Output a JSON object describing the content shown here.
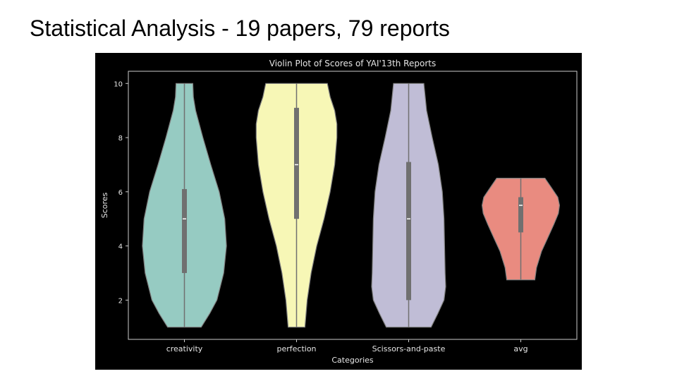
{
  "slide": {
    "title": "Statistical Analysis - 19 papers, 79 reports"
  },
  "chart_data": {
    "type": "violin",
    "title": "Violin Plot of Scores of YAI'13th Reports",
    "xlabel": "Categories",
    "ylabel": "Scores",
    "categories": [
      "creativity",
      "perfection",
      "Scissors-and-paste",
      "avg"
    ],
    "yticks": [
      2,
      4,
      6,
      8,
      10
    ],
    "ylim": [
      0.55,
      10.45
    ],
    "grid": false,
    "legend": "none",
    "background": "#000000",
    "violins": [
      {
        "category": "creativity",
        "color": "#96cbc2",
        "min": 1,
        "q1": 3,
        "median": 5,
        "q3": 6.1,
        "max": 10,
        "profile": [
          [
            1,
            0.3
          ],
          [
            1.5,
            0.45
          ],
          [
            2,
            0.58
          ],
          [
            3,
            0.7
          ],
          [
            4,
            0.75
          ],
          [
            5,
            0.72
          ],
          [
            6,
            0.62
          ],
          [
            7,
            0.47
          ],
          [
            8,
            0.33
          ],
          [
            9,
            0.2
          ],
          [
            9.5,
            0.16
          ],
          [
            10,
            0.15
          ]
        ]
      },
      {
        "category": "perfection",
        "color": "#f7f7b6",
        "min": 1,
        "q1": 5,
        "median": 7,
        "q3": 9.1,
        "max": 10,
        "profile": [
          [
            1,
            0.15
          ],
          [
            2,
            0.19
          ],
          [
            3,
            0.26
          ],
          [
            4,
            0.36
          ],
          [
            5,
            0.49
          ],
          [
            6,
            0.6
          ],
          [
            7,
            0.68
          ],
          [
            8,
            0.72
          ],
          [
            8.5,
            0.72
          ],
          [
            9,
            0.68
          ],
          [
            9.5,
            0.6
          ],
          [
            10,
            0.55
          ]
        ]
      },
      {
        "category": "Scissors-and-paste",
        "color": "#c0bdd6",
        "min": 1,
        "q1": 2,
        "median": 5,
        "q3": 7.1,
        "max": 10,
        "profile": [
          [
            1,
            0.4
          ],
          [
            1.5,
            0.52
          ],
          [
            2,
            0.63
          ],
          [
            2.5,
            0.66
          ],
          [
            3,
            0.65
          ],
          [
            4,
            0.64
          ],
          [
            5,
            0.63
          ],
          [
            6,
            0.6
          ],
          [
            7,
            0.53
          ],
          [
            8,
            0.42
          ],
          [
            9,
            0.32
          ],
          [
            10,
            0.27
          ]
        ]
      },
      {
        "category": "avg",
        "color": "#e98b80",
        "min": 2.75,
        "q1": 4.5,
        "median": 5.5,
        "q3": 5.8,
        "max": 6.5,
        "profile": [
          [
            2.75,
            0.25
          ],
          [
            3.2,
            0.28
          ],
          [
            3.8,
            0.37
          ],
          [
            4.3,
            0.48
          ],
          [
            4.8,
            0.59
          ],
          [
            5.2,
            0.67
          ],
          [
            5.5,
            0.69
          ],
          [
            5.8,
            0.66
          ],
          [
            6.2,
            0.53
          ],
          [
            6.5,
            0.43
          ]
        ]
      }
    ]
  }
}
